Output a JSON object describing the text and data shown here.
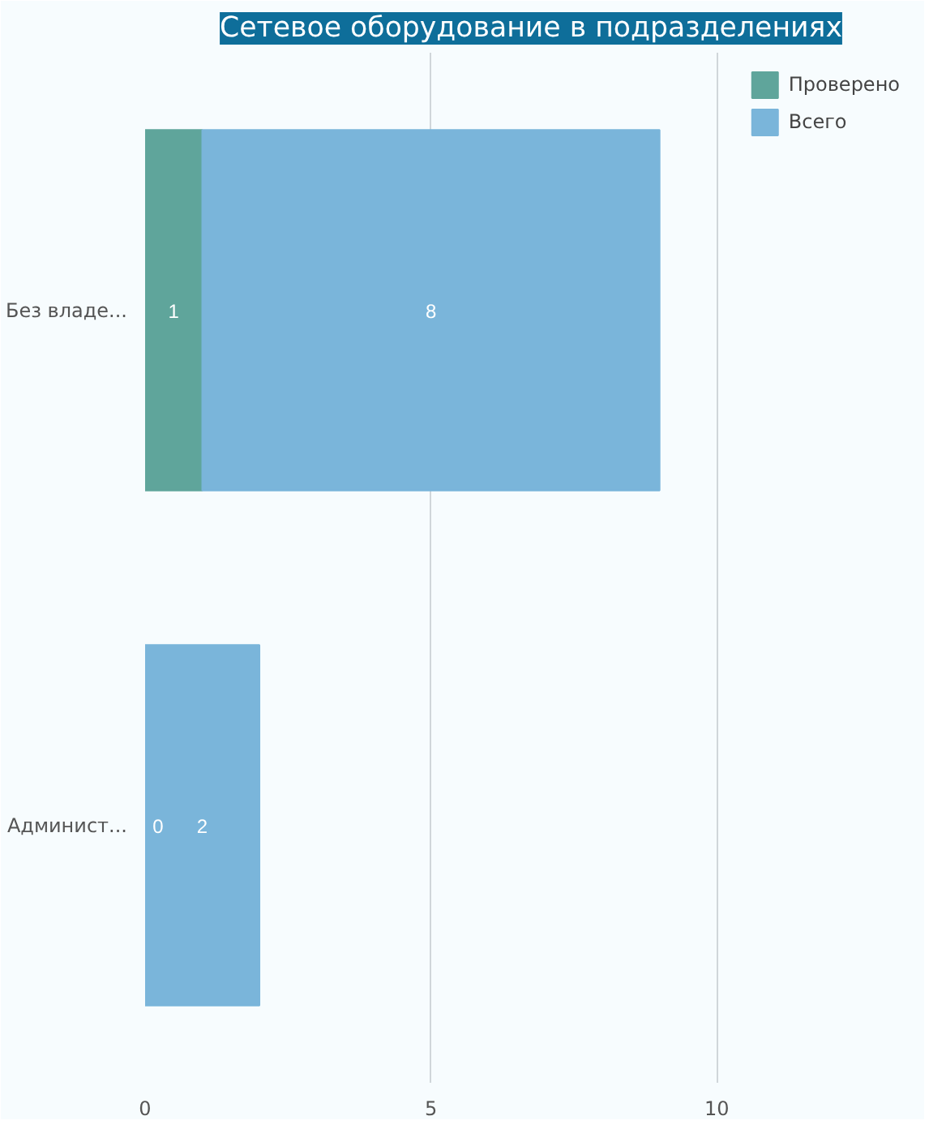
{
  "chart_data": {
    "type": "bar",
    "orientation": "horizontal",
    "stacked": true,
    "title": "Сетевое оборудование в подразделениях",
    "categories": [
      "Без владе...",
      "Админист..."
    ],
    "series": [
      {
        "name": "Проверено",
        "color": "#5fa59b",
        "values": [
          1,
          0
        ]
      },
      {
        "name": "Всего",
        "color": "#7ab5da",
        "values": [
          8,
          2
        ]
      }
    ],
    "xlim": [
      0,
      13.5
    ],
    "xticks": [
      0,
      5,
      10
    ],
    "grid": "x",
    "legend": "top right",
    "data_labels": true
  }
}
